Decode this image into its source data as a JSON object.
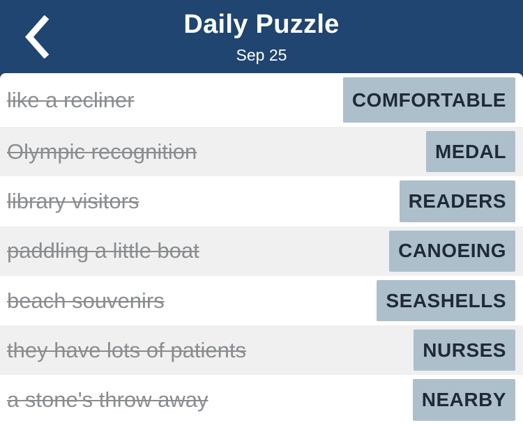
{
  "header": {
    "title": "Daily Puzzle",
    "date": "Sep 25"
  },
  "clues": [
    {
      "clue": "like a recliner",
      "answer": "COMFORTABLE"
    },
    {
      "clue": "Olympic recognition",
      "answer": "MEDAL"
    },
    {
      "clue": "library visitors",
      "answer": "READERS"
    },
    {
      "clue": "paddling a little boat",
      "answer": "CANOEING"
    },
    {
      "clue": "beach souvenirs",
      "answer": "SEASHELLS"
    },
    {
      "clue": "they have lots of patients",
      "answer": "NURSES"
    },
    {
      "clue": "a stone's throw away",
      "answer": "NEARBY"
    }
  ],
  "colors": {
    "header_bg": "#1f4570",
    "answer_bg": "#aebfcc",
    "clue_text": "#8a8d90",
    "alt_row_bg": "#f0f0f0"
  },
  "icons": {
    "back": "chevron-left-icon"
  }
}
